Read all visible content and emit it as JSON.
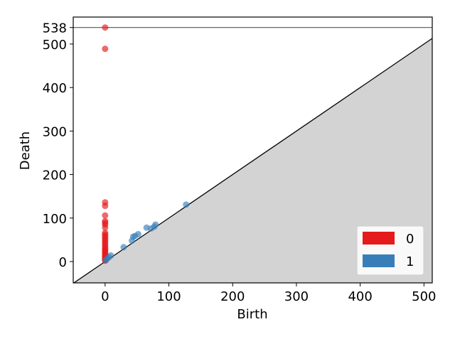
{
  "chart_data": {
    "type": "scatter",
    "title": "",
    "xlabel": "Birth",
    "ylabel": "Death",
    "xlim": [
      -50,
      513
    ],
    "ylim": [
      -49,
      562
    ],
    "xticks": [
      0,
      100,
      200,
      300,
      400,
      500
    ],
    "yticks": [
      0,
      100,
      200,
      300,
      400,
      500,
      538
    ],
    "infinity_line": 538,
    "grid": false,
    "legend_placement": "bottom-right",
    "colors": {
      "dim0": "#e41a1c",
      "dim1": "#377eb8",
      "diagonal_fill": "#d3d3d3",
      "infinity_line": "#555555"
    },
    "series": [
      {
        "name": "0",
        "points": [
          [
            0,
            538
          ],
          [
            0,
            489
          ],
          [
            0,
            136
          ],
          [
            0,
            128
          ],
          [
            0,
            106
          ],
          [
            0,
            93
          ],
          [
            0,
            89
          ],
          [
            0,
            85
          ],
          [
            0,
            78
          ],
          [
            0,
            66
          ],
          [
            0,
            62
          ],
          [
            0,
            58
          ],
          [
            0,
            54
          ],
          [
            0,
            50
          ],
          [
            0,
            46
          ],
          [
            0,
            42
          ],
          [
            0,
            38
          ],
          [
            0,
            34
          ],
          [
            0,
            30
          ],
          [
            0,
            27
          ],
          [
            0,
            24
          ],
          [
            0,
            21
          ],
          [
            0,
            18
          ],
          [
            0,
            15
          ],
          [
            0,
            12
          ],
          [
            0,
            9
          ],
          [
            0,
            6
          ],
          [
            0,
            4
          ],
          [
            0,
            2
          ]
        ]
      },
      {
        "name": "1",
        "points": [
          [
            127,
            131
          ],
          [
            79,
            85
          ],
          [
            77,
            80
          ],
          [
            72,
            76
          ],
          [
            65,
            78
          ],
          [
            52,
            63
          ],
          [
            47,
            59
          ],
          [
            44,
            57
          ],
          [
            42,
            48
          ],
          [
            29,
            33
          ],
          [
            9,
            14
          ],
          [
            6,
            10
          ],
          [
            3,
            6
          ],
          [
            1,
            3
          ]
        ]
      }
    ]
  }
}
